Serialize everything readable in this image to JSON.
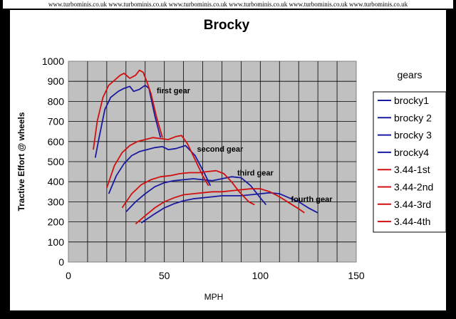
{
  "watermark": "www.turbominis.co.uk www.turbominis.co.uk www.turbominis.co.uk www.turbominis.co.uk www.turbominis.co.uk www.turbominis.co.uk",
  "chart_data": {
    "type": "line",
    "title": "Brocky",
    "xlabel": "MPH",
    "ylabel": "Tractive Effort @ wheels",
    "xlim": [
      0,
      150
    ],
    "ylim": [
      0,
      1000
    ],
    "x_ticks": [
      "0",
      "50",
      "100",
      "150"
    ],
    "y_ticks": [
      "0",
      "100",
      "200",
      "300",
      "400",
      "500",
      "600",
      "700",
      "800",
      "900",
      "1000"
    ],
    "grid": true,
    "plot_background": "#c0c0c0",
    "legend_title": "gears",
    "legend_position": "right",
    "annotations": [
      {
        "text": "first gear",
        "x": 46,
        "y": 840
      },
      {
        "text": "second gear",
        "x": 67,
        "y": 550
      },
      {
        "text": "third gear",
        "x": 88,
        "y": 430
      },
      {
        "text": "fourth gear",
        "x": 116,
        "y": 300
      }
    ],
    "series": [
      {
        "name": "brocky1",
        "color": "#1a1aa0",
        "points": [
          [
            14,
            520
          ],
          [
            16,
            620
          ],
          [
            19,
            760
          ],
          [
            22,
            820
          ],
          [
            26,
            850
          ],
          [
            29,
            865
          ],
          [
            32,
            875
          ],
          [
            34,
            850
          ],
          [
            37,
            860
          ],
          [
            40,
            880
          ],
          [
            42,
            865
          ],
          [
            45,
            730
          ],
          [
            48,
            620
          ]
        ]
      },
      {
        "name": "brocky 2",
        "color": "#1a1aa0",
        "points": [
          [
            21,
            340
          ],
          [
            25,
            430
          ],
          [
            29,
            490
          ],
          [
            33,
            530
          ],
          [
            37,
            550
          ],
          [
            41,
            560
          ],
          [
            45,
            570
          ],
          [
            49,
            575
          ],
          [
            52,
            560
          ],
          [
            56,
            565
          ],
          [
            61,
            580
          ],
          [
            66,
            530
          ],
          [
            71,
            440
          ],
          [
            74,
            380
          ]
        ]
      },
      {
        "name": "brocky 3",
        "color": "#1a1aa0",
        "points": [
          [
            30,
            250
          ],
          [
            35,
            300
          ],
          [
            40,
            340
          ],
          [
            45,
            375
          ],
          [
            50,
            395
          ],
          [
            55,
            405
          ],
          [
            60,
            410
          ],
          [
            65,
            415
          ],
          [
            70,
            410
          ],
          [
            75,
            405
          ],
          [
            80,
            415
          ],
          [
            85,
            425
          ],
          [
            90,
            420
          ],
          [
            95,
            380
          ],
          [
            100,
            320
          ],
          [
            103,
            285
          ]
        ]
      },
      {
        "name": "brocky4",
        "color": "#1a1aa0",
        "points": [
          [
            38,
            195
          ],
          [
            45,
            240
          ],
          [
            50,
            270
          ],
          [
            55,
            290
          ],
          [
            60,
            305
          ],
          [
            65,
            315
          ],
          [
            70,
            320
          ],
          [
            75,
            325
          ],
          [
            80,
            330
          ],
          [
            85,
            330
          ],
          [
            90,
            330
          ],
          [
            95,
            335
          ],
          [
            100,
            340
          ],
          [
            105,
            345
          ],
          [
            110,
            340
          ],
          [
            115,
            320
          ],
          [
            120,
            300
          ],
          [
            125,
            270
          ],
          [
            130,
            245
          ]
        ]
      },
      {
        "name": "3.44-1st",
        "color": "#d01010",
        "points": [
          [
            13,
            560
          ],
          [
            15,
            700
          ],
          [
            18,
            820
          ],
          [
            21,
            880
          ],
          [
            24,
            905
          ],
          [
            27,
            930
          ],
          [
            29,
            940
          ],
          [
            32,
            915
          ],
          [
            35,
            930
          ],
          [
            37,
            955
          ],
          [
            39,
            945
          ],
          [
            41,
            895
          ],
          [
            43,
            840
          ],
          [
            46,
            720
          ],
          [
            49,
            620
          ]
        ]
      },
      {
        "name": "3.44-2nd",
        "color": "#d01010",
        "points": [
          [
            20,
            370
          ],
          [
            24,
            480
          ],
          [
            28,
            545
          ],
          [
            32,
            580
          ],
          [
            36,
            600
          ],
          [
            40,
            610
          ],
          [
            44,
            620
          ],
          [
            48,
            615
          ],
          [
            52,
            610
          ],
          [
            56,
            625
          ],
          [
            59,
            630
          ],
          [
            62,
            590
          ],
          [
            66,
            510
          ],
          [
            70,
            430
          ],
          [
            73,
            380
          ]
        ]
      },
      {
        "name": "3.44-3rd",
        "color": "#d01010",
        "points": [
          [
            28,
            270
          ],
          [
            33,
            340
          ],
          [
            38,
            385
          ],
          [
            43,
            410
          ],
          [
            48,
            425
          ],
          [
            53,
            430
          ],
          [
            58,
            440
          ],
          [
            63,
            445
          ],
          [
            68,
            445
          ],
          [
            72,
            450
          ],
          [
            77,
            455
          ],
          [
            81,
            440
          ],
          [
            85,
            400
          ],
          [
            89,
            350
          ],
          [
            94,
            300
          ],
          [
            97,
            285
          ]
        ]
      },
      {
        "name": "3.44-4th",
        "color": "#d01010",
        "points": [
          [
            35,
            190
          ],
          [
            40,
            230
          ],
          [
            45,
            270
          ],
          [
            50,
            300
          ],
          [
            55,
            320
          ],
          [
            60,
            335
          ],
          [
            65,
            340
          ],
          [
            70,
            345
          ],
          [
            75,
            350
          ],
          [
            80,
            350
          ],
          [
            85,
            355
          ],
          [
            90,
            360
          ],
          [
            95,
            365
          ],
          [
            100,
            365
          ],
          [
            105,
            350
          ],
          [
            110,
            325
          ],
          [
            115,
            295
          ],
          [
            120,
            265
          ],
          [
            123,
            245
          ]
        ]
      }
    ]
  }
}
